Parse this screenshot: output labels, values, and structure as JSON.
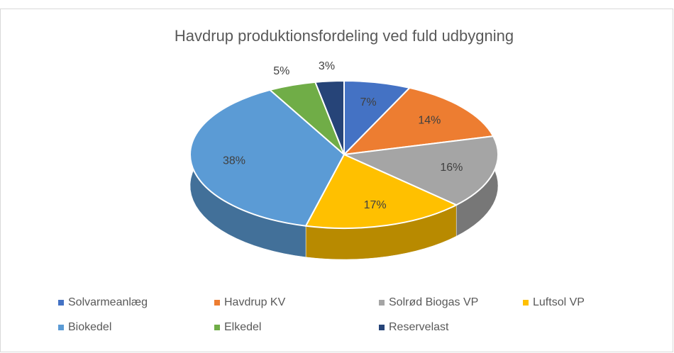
{
  "chart_data": {
    "type": "pie",
    "title": "Havdrup produktionsfordeling ved fuld udbygning",
    "categories": [
      "Solvarmeanlæg",
      "Havdrup KV",
      "Solrød Biogas VP",
      "Luftsol VP",
      "Biokedel",
      "Elkedel",
      "Reservelast"
    ],
    "values": [
      7,
      14,
      16,
      17,
      38,
      5,
      3
    ],
    "value_labels": [
      "7%",
      "14%",
      "16%",
      "17%",
      "38%",
      "5%",
      "3%"
    ],
    "colors": [
      "#4472c4",
      "#ed7d31",
      "#a5a5a5",
      "#ffc000",
      "#5b9bd5",
      "#70ad47",
      "#264478"
    ],
    "legend": "bottom"
  }
}
